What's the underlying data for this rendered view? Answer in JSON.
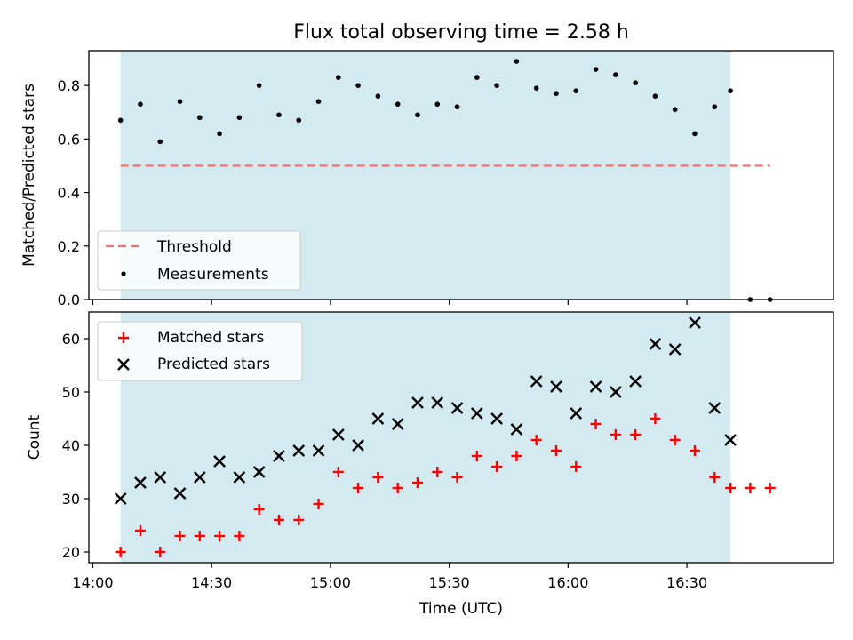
{
  "title": "Flux total observing time = 2.58 h",
  "x_ticks": [
    "14:00",
    "14:30",
    "15:00",
    "15:30",
    "16:00",
    "16:30"
  ],
  "xlabel": "Time (UTC)",
  "colors": {
    "shade": "#d3eaf0",
    "threshold": "#f07070",
    "matched": "#ff0000",
    "predicted": "#000000",
    "measurement": "#000000"
  },
  "chart_data": [
    {
      "type": "scatter",
      "ylabel": "Matched/Predicted stars",
      "xlim": [
        "13:59",
        "17:07"
      ],
      "ylim": [
        0.0,
        0.93
      ],
      "y_ticks": [
        "0.0",
        "0.2",
        "0.4",
        "0.6",
        "0.8"
      ],
      "shaded_interval": [
        "14:07",
        "16:41"
      ],
      "legend_position": "lower-left",
      "series": [
        {
          "name": "Threshold",
          "kind": "dashed-line",
          "x": [
            "14:07",
            "16:51"
          ],
          "y": [
            0.5,
            0.5
          ]
        },
        {
          "name": "Measurements",
          "kind": "dot",
          "x": [
            "14:07",
            "14:12",
            "14:17",
            "14:22",
            "14:27",
            "14:32",
            "14:37",
            "14:42",
            "14:47",
            "14:52",
            "14:57",
            "15:02",
            "15:07",
            "15:12",
            "15:17",
            "15:22",
            "15:27",
            "15:32",
            "15:37",
            "15:42",
            "15:47",
            "15:52",
            "15:57",
            "16:02",
            "16:07",
            "16:12",
            "16:17",
            "16:22",
            "16:27",
            "16:32",
            "16:37",
            "16:41",
            "16:46",
            "16:51"
          ],
          "y": [
            0.67,
            0.73,
            0.59,
            0.74,
            0.68,
            0.62,
            0.68,
            0.8,
            0.69,
            0.67,
            0.74,
            0.83,
            0.8,
            0.76,
            0.73,
            0.69,
            0.73,
            0.72,
            0.83,
            0.8,
            0.89,
            0.79,
            0.77,
            0.78,
            0.86,
            0.84,
            0.81,
            0.76,
            0.71,
            0.62,
            0.72,
            0.78,
            0.0,
            0.0
          ]
        }
      ]
    },
    {
      "type": "scatter",
      "ylabel": "Count",
      "xlabel": "Time (UTC)",
      "xlim": [
        "13:59",
        "17:07"
      ],
      "ylim": [
        18,
        65
      ],
      "y_ticks": [
        "20",
        "30",
        "40",
        "50",
        "60"
      ],
      "shaded_interval": [
        "14:07",
        "16:41"
      ],
      "legend_position": "upper-left",
      "series": [
        {
          "name": "Matched stars",
          "kind": "plus",
          "x": [
            "14:07",
            "14:12",
            "14:17",
            "14:22",
            "14:27",
            "14:32",
            "14:37",
            "14:42",
            "14:47",
            "14:52",
            "14:57",
            "15:02",
            "15:07",
            "15:12",
            "15:17",
            "15:22",
            "15:27",
            "15:32",
            "15:37",
            "15:42",
            "15:47",
            "15:52",
            "15:57",
            "16:02",
            "16:07",
            "16:12",
            "16:17",
            "16:22",
            "16:27",
            "16:32",
            "16:37",
            "16:41",
            "16:46",
            "16:51"
          ],
          "y": [
            20,
            24,
            20,
            23,
            23,
            23,
            23,
            28,
            26,
            26,
            29,
            35,
            32,
            34,
            32,
            33,
            35,
            34,
            38,
            36,
            38,
            41,
            39,
            36,
            44,
            42,
            42,
            45,
            41,
            39,
            34,
            32,
            32,
            32
          ]
        },
        {
          "name": "Predicted stars",
          "kind": "x",
          "x": [
            "14:07",
            "14:12",
            "14:17",
            "14:22",
            "14:27",
            "14:32",
            "14:37",
            "14:42",
            "14:47",
            "14:52",
            "14:57",
            "15:02",
            "15:07",
            "15:12",
            "15:17",
            "15:22",
            "15:27",
            "15:32",
            "15:37",
            "15:42",
            "15:47",
            "15:52",
            "15:57",
            "16:02",
            "16:07",
            "16:12",
            "16:17",
            "16:22",
            "16:27",
            "16:32",
            "16:37",
            "16:41"
          ],
          "y": [
            30,
            33,
            34,
            31,
            34,
            37,
            34,
            35,
            38,
            39,
            39,
            42,
            40,
            45,
            44,
            48,
            48,
            47,
            46,
            45,
            43,
            52,
            51,
            46,
            51,
            50,
            52,
            59,
            58,
            63,
            47,
            41
          ]
        }
      ]
    }
  ]
}
